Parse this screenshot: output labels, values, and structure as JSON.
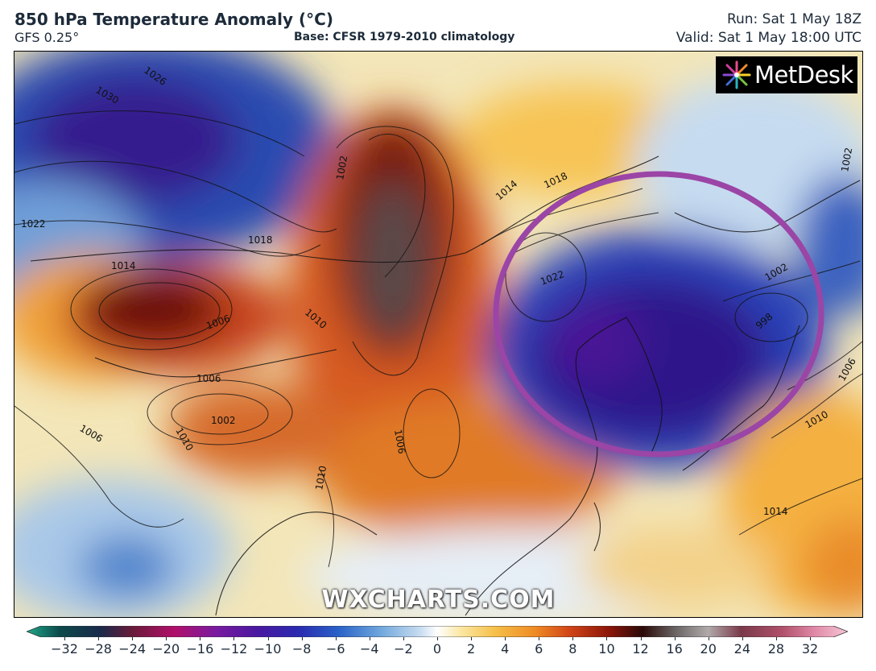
{
  "header": {
    "title": "850 hPa Temperature Anomaly (°C)",
    "model": "GFS 0.25°",
    "base": "Base: CFSR 1979-2010 climatology",
    "run": "Run: Sat 1 May 18Z",
    "valid": "Valid: Sat 1 May 18:00 UTC"
  },
  "logo": {
    "text": "MetDesk"
  },
  "watermark": {
    "text": "WXCHARTS.COM"
  },
  "colors": {
    "highlight_circle": "#9b45a6",
    "cold_core": "#3a1a8a",
    "warm_core": "#5a1008"
  },
  "isobar_labels": [
    {
      "key": "l1030",
      "text": "1030"
    },
    {
      "key": "l1026",
      "text": "1026"
    },
    {
      "key": "l1022a",
      "text": "1022"
    },
    {
      "key": "l1018a",
      "text": "1018"
    },
    {
      "key": "l1014a",
      "text": "1014"
    },
    {
      "key": "l1002a",
      "text": "1002"
    },
    {
      "key": "l1006a",
      "text": "1006"
    },
    {
      "key": "l1010a",
      "text": "1010"
    },
    {
      "key": "l1006b",
      "text": "1006"
    },
    {
      "key": "l1002b",
      "text": "1002"
    },
    {
      "key": "l1010b",
      "text": "1010"
    },
    {
      "key": "l1014b",
      "text": "1014"
    },
    {
      "key": "l1018b",
      "text": "1018"
    },
    {
      "key": "l1022b",
      "text": "1022"
    },
    {
      "key": "l1002c",
      "text": "1002"
    },
    {
      "key": "l998",
      "text": "998"
    },
    {
      "key": "l1006c",
      "text": "1006"
    },
    {
      "key": "l1010c",
      "text": "1010"
    },
    {
      "key": "l1014c",
      "text": "1014"
    },
    {
      "key": "l1006d",
      "text": "1006"
    },
    {
      "key": "l1010d",
      "text": "1010"
    },
    {
      "key": "l1006e",
      "text": "1006"
    },
    {
      "key": "l1002d",
      "text": "1002"
    }
  ],
  "colorbar": {
    "ticks": [
      "−32",
      "−28",
      "−24",
      "−20",
      "−16",
      "−12",
      "−10",
      "−8",
      "−6",
      "−4",
      "−2",
      "0",
      "2",
      "4",
      "6",
      "8",
      "10",
      "12",
      "16",
      "20",
      "24",
      "28",
      "32"
    ]
  }
}
